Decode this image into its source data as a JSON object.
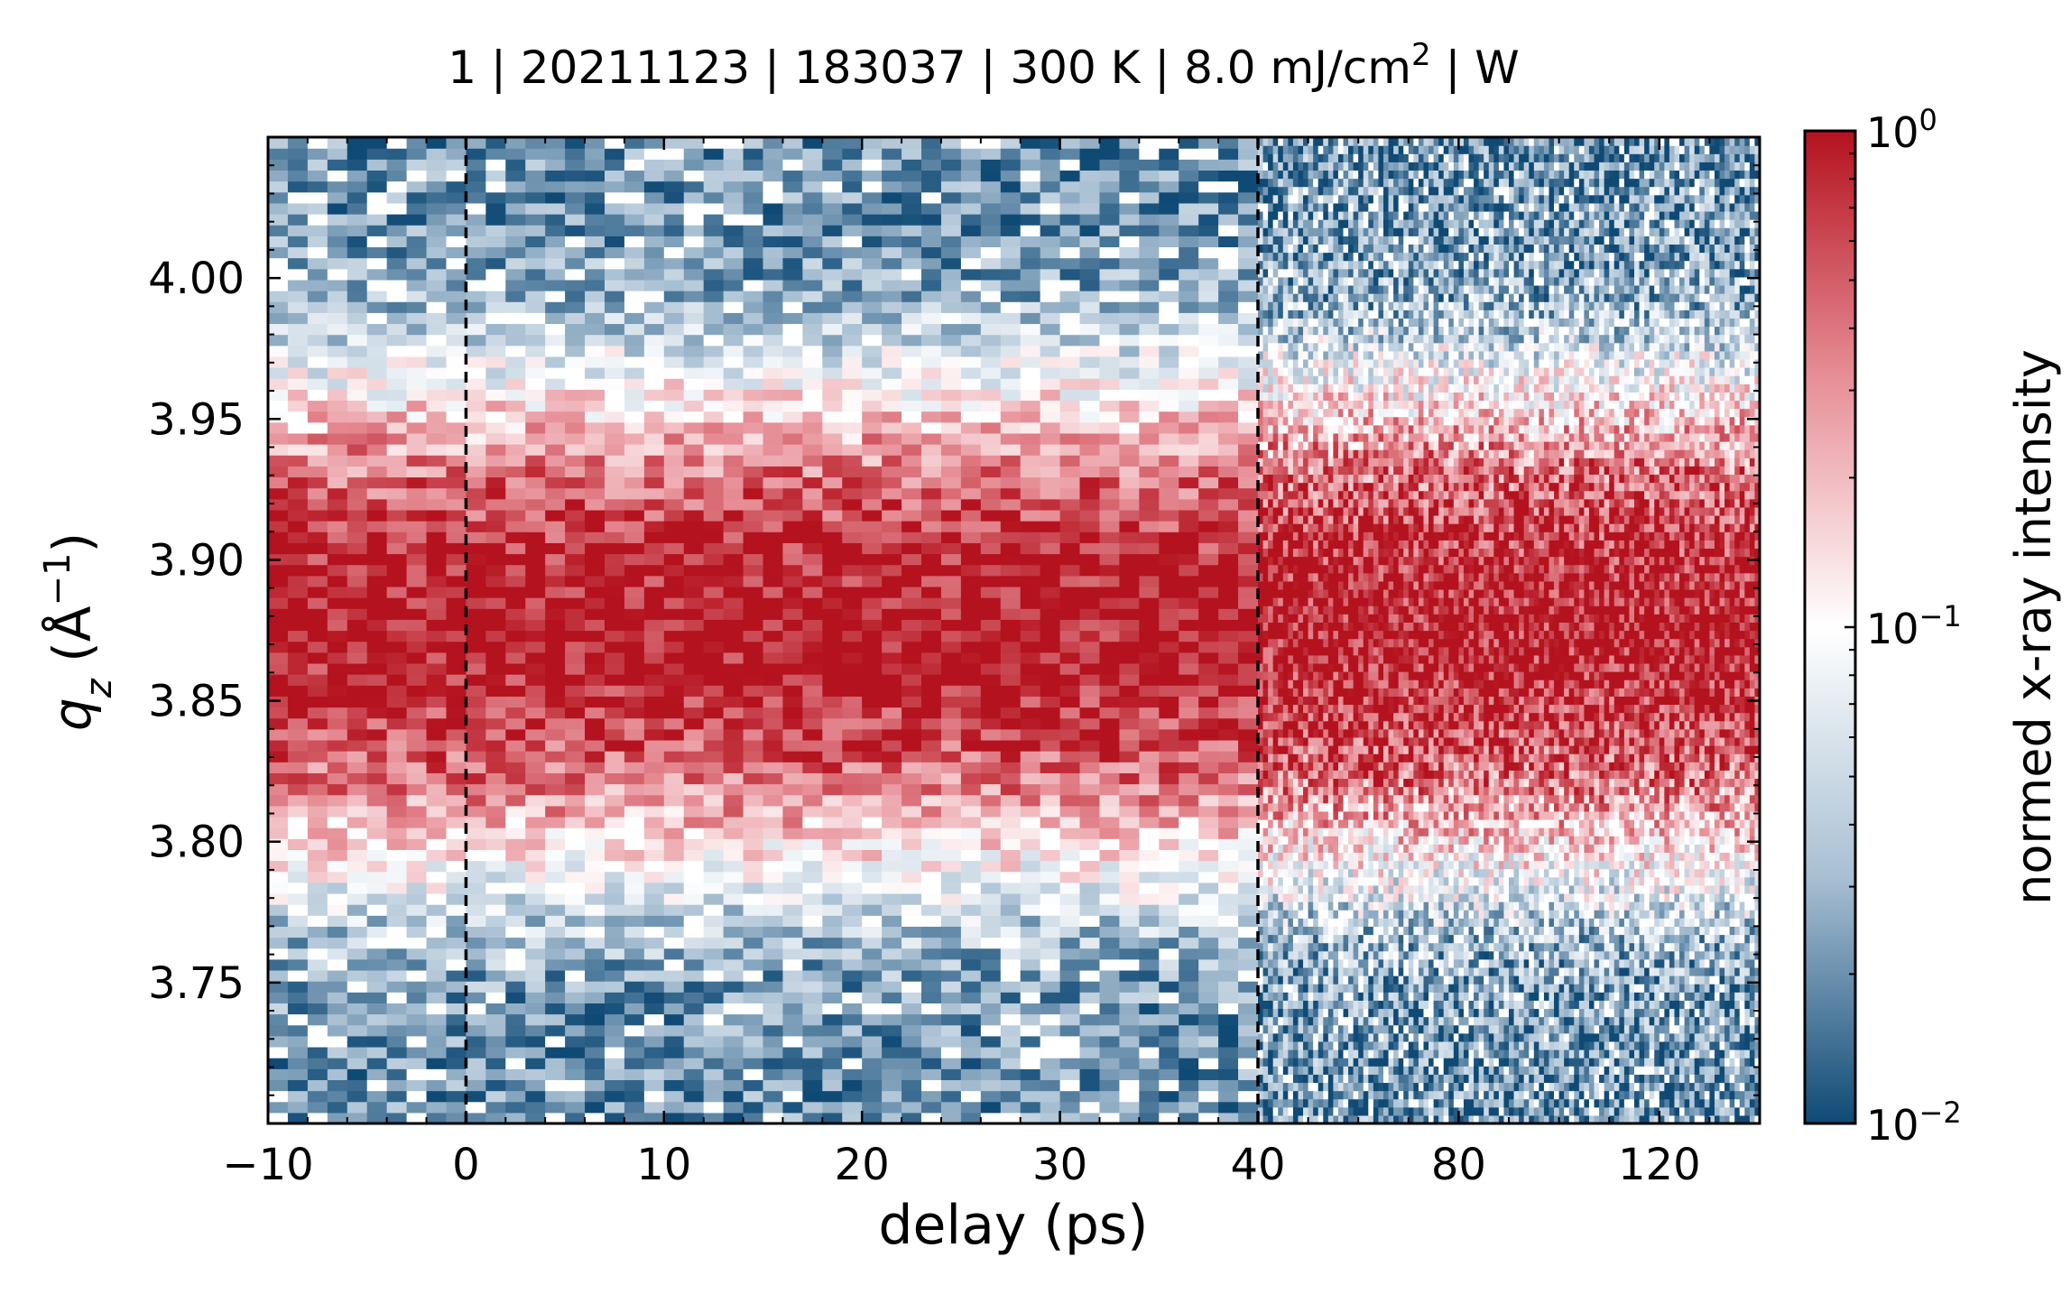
{
  "chart_data": {
    "type": "heatmap",
    "title": "1 | 20211123 | 183037 | 300 K | 8.0 mJ/cm² | W",
    "title_parts": {
      "text_before_sup": "1 | 20211123 | 183037 | 300 K | 8.0 mJ/cm",
      "sup": "2",
      "text_after_sup": " | W"
    },
    "xlabel": "delay (ps)",
    "ylabel": {
      "variable": "q",
      "subscript": "z",
      "unit_open": " (Å",
      "unit_sup": "−1",
      "unit_close": ")"
    },
    "x_axis": {
      "segments": [
        {
          "range": [
            -10,
            40
          ],
          "scale": "linear"
        },
        {
          "range": [
            40,
            140
          ],
          "scale": "linear"
        }
      ],
      "ticks": [
        {
          "value": -10,
          "label": "−10"
        },
        {
          "value": 0,
          "label": "0"
        },
        {
          "value": 10,
          "label": "10"
        },
        {
          "value": 20,
          "label": "20"
        },
        {
          "value": 30,
          "label": "30"
        },
        {
          "value": 40,
          "label": "40"
        },
        {
          "value": 80,
          "label": "80"
        },
        {
          "value": 120,
          "label": "120"
        }
      ]
    },
    "y_axis": {
      "range": [
        3.7,
        4.05
      ],
      "ticks": [
        {
          "value": 3.75,
          "label": "3.75"
        },
        {
          "value": 3.8,
          "label": "3.80"
        },
        {
          "value": 3.85,
          "label": "3.85"
        },
        {
          "value": 3.9,
          "label": "3.90"
        },
        {
          "value": 3.95,
          "label": "3.95"
        },
        {
          "value": 4.0,
          "label": "4.00"
        }
      ]
    },
    "vertical_lines": [
      {
        "x": 0,
        "style": "dashed",
        "color": "#000000"
      },
      {
        "x": 40,
        "style": "dashed",
        "color": "#000000"
      }
    ],
    "colorbar": {
      "label": "normed x-ray intensity",
      "scale": "log",
      "range": [
        0.01,
        1
      ],
      "ticks": [
        {
          "value": 1,
          "base": "10",
          "exp": "0"
        },
        {
          "value": 0.1,
          "base": "10",
          "exp": "−1"
        },
        {
          "value": 0.01,
          "base": "10",
          "exp": "−2"
        }
      ],
      "colormap": [
        "#0f4a75",
        "#a9c0d3",
        "#ffffff",
        "#e78f97",
        "#b4121e"
      ]
    },
    "peak": {
      "center_qz": 3.877,
      "fwhm_qz": 0.09,
      "background_intensity": 0.02
    },
    "grid": false
  }
}
